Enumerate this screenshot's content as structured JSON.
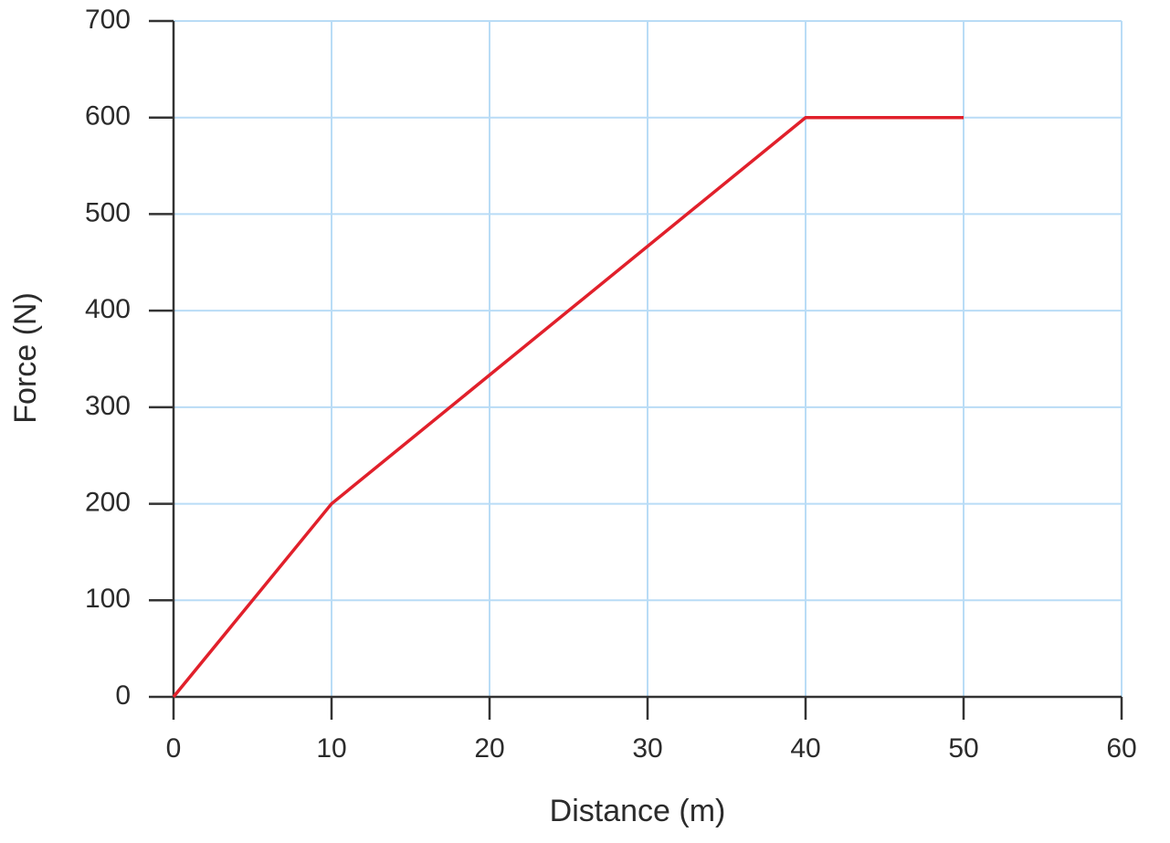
{
  "chart_data": {
    "type": "line",
    "x_label": "Distance (m)",
    "y_label": "Force (N)",
    "x": [
      0,
      10,
      40,
      50
    ],
    "values": [
      0,
      200,
      600,
      600
    ],
    "color": "#e1202b",
    "xlim": [
      0,
      60
    ],
    "xticks": [
      0,
      10,
      20,
      30,
      40,
      50,
      60
    ],
    "ylim": [
      0,
      700
    ],
    "yticks": [
      0,
      100,
      200,
      300,
      400,
      500,
      600,
      700
    ],
    "grid": true
  }
}
